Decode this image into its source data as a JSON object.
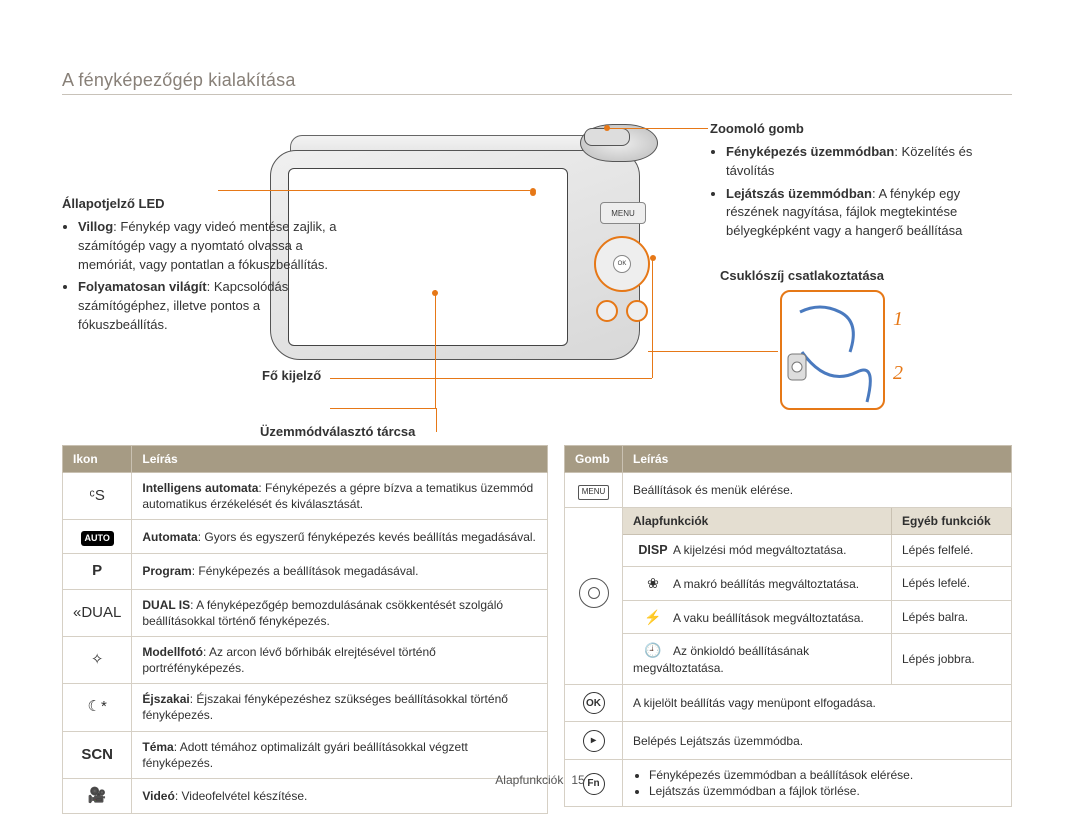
{
  "page": {
    "title": "A fényképezőgép kialakítása",
    "footer_section": "Alapfunkciók",
    "footer_page": "15"
  },
  "callouts": {
    "zoom": {
      "head": "Zoomoló gomb",
      "items": [
        {
          "bold": "Fényképezés üzemmódban",
          "rest": ": Közelítés és távolítás"
        },
        {
          "bold": "Lejátszás üzemmódban",
          "rest": ": A fénykép egy részének nagyítása, fájlok megtekintése bélyegképként vagy a hangerő beállítása"
        }
      ]
    },
    "status_led": {
      "head": "Állapotjelző LED",
      "items": [
        {
          "bold": "Villog",
          "rest": ": Fénykép vagy videó mentése zajlik, a számítógép vagy a nyomtató olvassa a memóriát, vagy pontatlan a fókuszbeállítás."
        },
        {
          "bold": "Folyamatosan világít",
          "rest": ": Kapcsolódás számítógéphez, illetve pontos a fókuszbeállítás."
        }
      ]
    },
    "main_display": "Fő kijelző",
    "mode_dial": "Üzemmódválasztó tárcsa",
    "strap": "Csuklószíj csatlakoztatása",
    "strap_nums": {
      "one": "1",
      "two": "2"
    }
  },
  "table_icons": {
    "headers": {
      "icon": "Ikon",
      "desc": "Leírás"
    },
    "rows": [
      {
        "icon_label": "ᶜS",
        "bold": "Intelligens automata",
        "rest": ": Fényképezés a gépre bízva a tematikus üzemmód automatikus érzékelését és kiválasztását."
      },
      {
        "icon_label": "AUTO",
        "bold": "Automata",
        "rest": ": Gyors és egyszerű fényképezés kevés beállítás megadásával."
      },
      {
        "icon_label": "P",
        "bold": "Program",
        "rest": ": Fényképezés a beállítások megadásával."
      },
      {
        "icon_label": "«DUAL",
        "bold": "DUAL IS",
        "rest": ": A fényképezőgép bemozdulásának csökkentését szolgáló beállításokkal történő fényképezés."
      },
      {
        "icon_label": "✧",
        "bold": "Modellfotó",
        "rest": ": Az arcon lévő bőrhibák elrejtésével történő portréfényképezés."
      },
      {
        "icon_label": "☾*",
        "bold": "Éjszakai",
        "rest": ": Éjszakai fényképezéshez szükséges beállításokkal történő fényképezés."
      },
      {
        "icon_label": "SCN",
        "bold": "Téma",
        "rest": ": Adott témához optimalizált gyári beállításokkal végzett fényképezés."
      },
      {
        "icon_label": "🎥",
        "bold": "Videó",
        "rest": ": Videofelvétel készítése."
      }
    ]
  },
  "table_buttons": {
    "headers": {
      "button": "Gomb",
      "desc": "Leírás",
      "basic": "Alapfunkciók",
      "other": "Egyéb funkciók"
    },
    "menu_row": {
      "label": "MENU",
      "desc": "Beállítások és menük elérése."
    },
    "nav": {
      "rows": [
        {
          "icon": "DISP",
          "basic": "A kijelzési mód megváltoztatása.",
          "other": "Lépés felfelé."
        },
        {
          "icon": "❀",
          "basic": "A makró beállítás megváltoztatása.",
          "other": "Lépés lefelé."
        },
        {
          "icon": "⚡",
          "basic": "A vaku beállítások megváltoztatása.",
          "other": "Lépés balra."
        },
        {
          "icon": "🕘",
          "basic": "Az önkioldó beállításának megváltoztatása.",
          "other": "Lépés jobbra."
        }
      ]
    },
    "ok_row": {
      "icon": "OK",
      "desc": "A kijelölt beállítás vagy menüpont elfogadása."
    },
    "play_row": {
      "icon": "▸",
      "desc": "Belépés Lejátszás üzemmódba."
    },
    "fn_row": {
      "icon": "Fn",
      "bullets": [
        "Fényképezés üzemmódban a beállítások elérése.",
        "Lejátszás üzemmódban a fájlok törlése."
      ]
    }
  },
  "colors": {
    "accent": "#e67817",
    "header_bg": "#a69b84",
    "subheader_bg": "#e4ded1",
    "rule": "#c8c2b9",
    "title": "#888078"
  }
}
